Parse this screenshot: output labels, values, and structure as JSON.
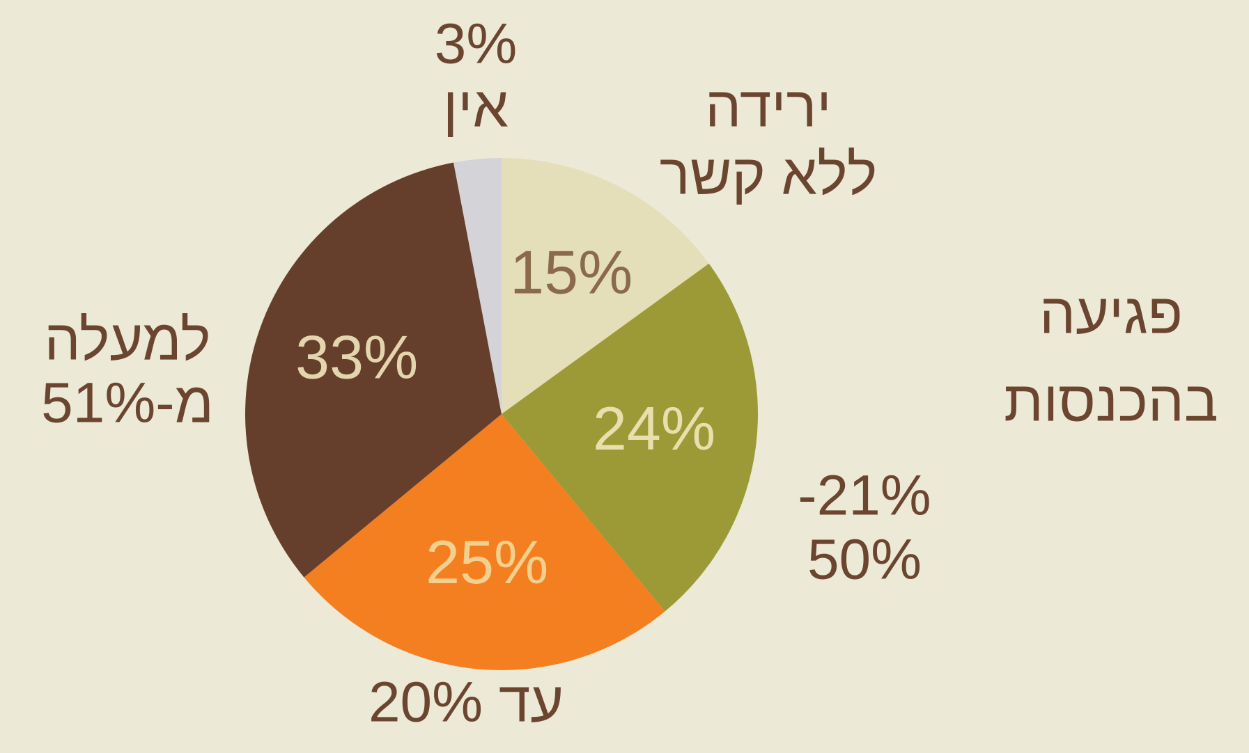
{
  "chart_data": {
    "type": "pie",
    "title": [
      "פגיעה",
      "בהכנסות"
    ],
    "categories": [
      [
        "ירידה",
        "ללא קשר"
      ],
      [
        "-21%",
        "50%"
      ],
      [
        "עד 20%"
      ],
      [
        "למעלה",
        "מ-51%"
      ],
      [
        "אין"
      ]
    ],
    "values": [
      15,
      24,
      25,
      33,
      3
    ],
    "value_labels": [
      "15%",
      "24%",
      "25%",
      "33%",
      "3%"
    ],
    "colors": [
      "#e5dfb9",
      "#9b9a36",
      "#f47f20",
      "#663f2c",
      "#d4d4d8"
    ],
    "label_colors": [
      "#8a6a4a",
      "#e8dfae",
      "#f3d08e",
      "#e3d6ae",
      "#6b4530"
    ]
  }
}
